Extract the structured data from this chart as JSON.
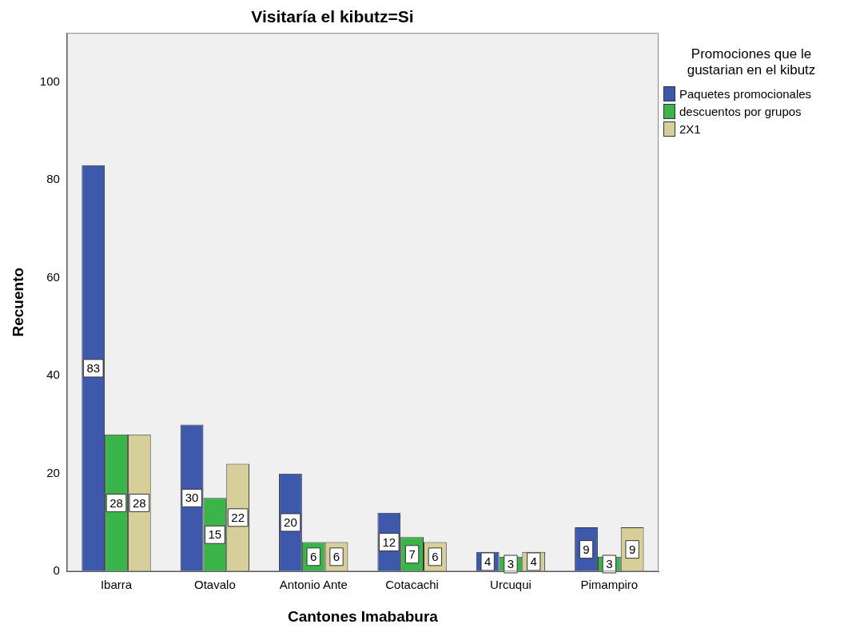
{
  "chart_data": {
    "type": "bar",
    "title": "Visitaría el kibutz=Si",
    "xlabel": "Cantones Imababura",
    "ylabel": "Recuento",
    "legend_title": "Promociones que le gustarian en el kibutz",
    "categories": [
      "Ibarra",
      "Otavalo",
      "Antonio Ante",
      "Cotacachi",
      "Urcuqui",
      "Pimampiro"
    ],
    "series": [
      {
        "name": "Paquetes promocionales",
        "color": "#3e58ac",
        "values": [
          83,
          30,
          20,
          12,
          4,
          9
        ]
      },
      {
        "name": "descuentos por grupos",
        "color": "#3bb54a",
        "values": [
          28,
          15,
          6,
          7,
          3,
          3
        ]
      },
      {
        "name": "2X1",
        "color": "#d6cf9a",
        "values": [
          28,
          22,
          6,
          6,
          4,
          9
        ]
      }
    ],
    "ylim": [
      0,
      110
    ],
    "yticks": [
      0,
      20,
      40,
      60,
      80,
      100
    ],
    "grid": false,
    "legend": "top right",
    "data_labels": true
  }
}
